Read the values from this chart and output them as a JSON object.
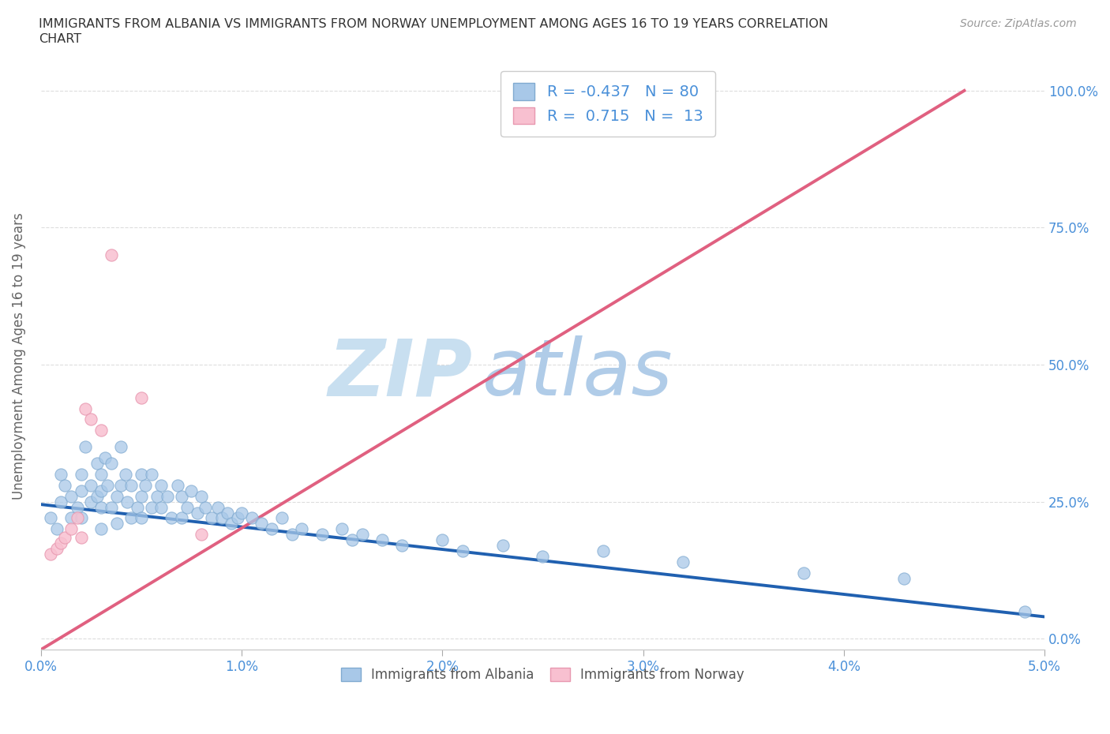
{
  "title_line1": "IMMIGRANTS FROM ALBANIA VS IMMIGRANTS FROM NORWAY UNEMPLOYMENT AMONG AGES 16 TO 19 YEARS CORRELATION",
  "title_line2": "CHART",
  "source_text": "Source: ZipAtlas.com",
  "ylabel": "Unemployment Among Ages 16 to 19 years",
  "xlim": [
    0.0,
    0.05
  ],
  "ylim": [
    -0.02,
    1.05
  ],
  "xtick_labels": [
    "0.0%",
    "1.0%",
    "2.0%",
    "3.0%",
    "4.0%",
    "5.0%"
  ],
  "xtick_vals": [
    0.0,
    0.01,
    0.02,
    0.03,
    0.04,
    0.05
  ],
  "ytick_labels_right": [
    "0.0%",
    "25.0%",
    "50.0%",
    "75.0%",
    "100.0%"
  ],
  "ytick_vals": [
    0.0,
    0.25,
    0.5,
    0.75,
    1.0
  ],
  "albania_color": "#a8c8e8",
  "albania_edge_color": "#80aad0",
  "norway_color": "#f8c0d0",
  "norway_edge_color": "#e898b0",
  "albania_line_color": "#2060b0",
  "norway_line_color": "#e06080",
  "legend_r_albania": "-0.437",
  "legend_n_albania": "80",
  "legend_r_norway": "0.715",
  "legend_n_norway": "13",
  "watermark_zip": "ZIP",
  "watermark_atlas": "atlas",
  "watermark_color_zip": "#c8dff0",
  "watermark_color_atlas": "#b0cce8",
  "albania_line_x0": 0.0,
  "albania_line_y0": 0.245,
  "albania_line_x1": 0.05,
  "albania_line_y1": 0.04,
  "norway_line_x0": 0.0,
  "norway_line_y0": -0.02,
  "norway_line_x1": 0.046,
  "norway_line_y1": 1.0,
  "albania_scatter_x": [
    0.0005,
    0.0008,
    0.001,
    0.001,
    0.0012,
    0.0015,
    0.0015,
    0.0018,
    0.002,
    0.002,
    0.002,
    0.0022,
    0.0025,
    0.0025,
    0.0028,
    0.0028,
    0.003,
    0.003,
    0.003,
    0.003,
    0.0032,
    0.0033,
    0.0035,
    0.0035,
    0.0038,
    0.0038,
    0.004,
    0.004,
    0.0042,
    0.0043,
    0.0045,
    0.0045,
    0.0048,
    0.005,
    0.005,
    0.005,
    0.0052,
    0.0055,
    0.0055,
    0.0058,
    0.006,
    0.006,
    0.0063,
    0.0065,
    0.0068,
    0.007,
    0.007,
    0.0073,
    0.0075,
    0.0078,
    0.008,
    0.0082,
    0.0085,
    0.0088,
    0.009,
    0.0093,
    0.0095,
    0.0098,
    0.01,
    0.0105,
    0.011,
    0.0115,
    0.012,
    0.0125,
    0.013,
    0.014,
    0.015,
    0.0155,
    0.016,
    0.017,
    0.018,
    0.02,
    0.021,
    0.023,
    0.025,
    0.028,
    0.032,
    0.038,
    0.043,
    0.049
  ],
  "albania_scatter_y": [
    0.22,
    0.2,
    0.3,
    0.25,
    0.28,
    0.26,
    0.22,
    0.24,
    0.3,
    0.27,
    0.22,
    0.35,
    0.28,
    0.25,
    0.32,
    0.26,
    0.3,
    0.27,
    0.24,
    0.2,
    0.33,
    0.28,
    0.32,
    0.24,
    0.26,
    0.21,
    0.35,
    0.28,
    0.3,
    0.25,
    0.28,
    0.22,
    0.24,
    0.3,
    0.26,
    0.22,
    0.28,
    0.3,
    0.24,
    0.26,
    0.28,
    0.24,
    0.26,
    0.22,
    0.28,
    0.26,
    0.22,
    0.24,
    0.27,
    0.23,
    0.26,
    0.24,
    0.22,
    0.24,
    0.22,
    0.23,
    0.21,
    0.22,
    0.23,
    0.22,
    0.21,
    0.2,
    0.22,
    0.19,
    0.2,
    0.19,
    0.2,
    0.18,
    0.19,
    0.18,
    0.17,
    0.18,
    0.16,
    0.17,
    0.15,
    0.16,
    0.14,
    0.12,
    0.11,
    0.05
  ],
  "norway_scatter_x": [
    0.0005,
    0.0008,
    0.001,
    0.0012,
    0.0015,
    0.0018,
    0.002,
    0.0022,
    0.0025,
    0.003,
    0.0035,
    0.005,
    0.008
  ],
  "norway_scatter_y": [
    0.155,
    0.165,
    0.175,
    0.185,
    0.2,
    0.22,
    0.185,
    0.42,
    0.4,
    0.38,
    0.7,
    0.44,
    0.19
  ]
}
